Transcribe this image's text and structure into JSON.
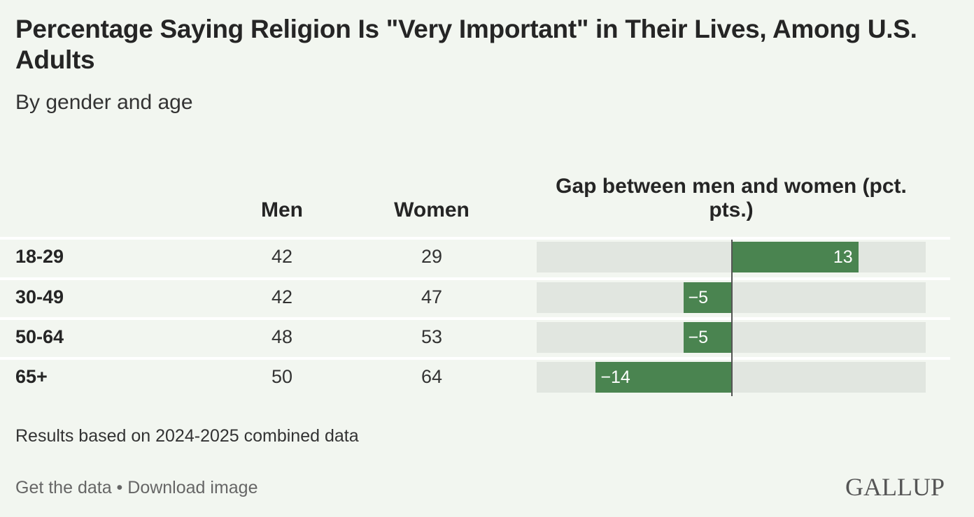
{
  "chart_data": {
    "type": "table",
    "title": "Percentage Saying Religion Is \"Very Important\" in Their Lives, Among U.S. Adults",
    "subtitle": "By gender and age",
    "columns": [
      "Men",
      "Women",
      "Gap between men and women (pct. pts.)"
    ],
    "categories": [
      "18-29",
      "30-49",
      "50-64",
      "65+"
    ],
    "series": [
      {
        "name": "Men",
        "values": [
          42,
          42,
          48,
          50
        ]
      },
      {
        "name": "Women",
        "values": [
          29,
          47,
          53,
          64
        ]
      },
      {
        "name": "Gap",
        "values": [
          13,
          -5,
          -5,
          -14
        ]
      }
    ],
    "gap_labels": [
      "13",
      "−5",
      "−5",
      "−14"
    ],
    "gap_range": [
      -20,
      20
    ],
    "bar_color": "#4a8450",
    "note": "Results based on 2024-2025 combined data"
  },
  "footer": {
    "get_data": "Get the data",
    "separator": " • ",
    "download": "Download image",
    "logo": "GALLUP"
  }
}
